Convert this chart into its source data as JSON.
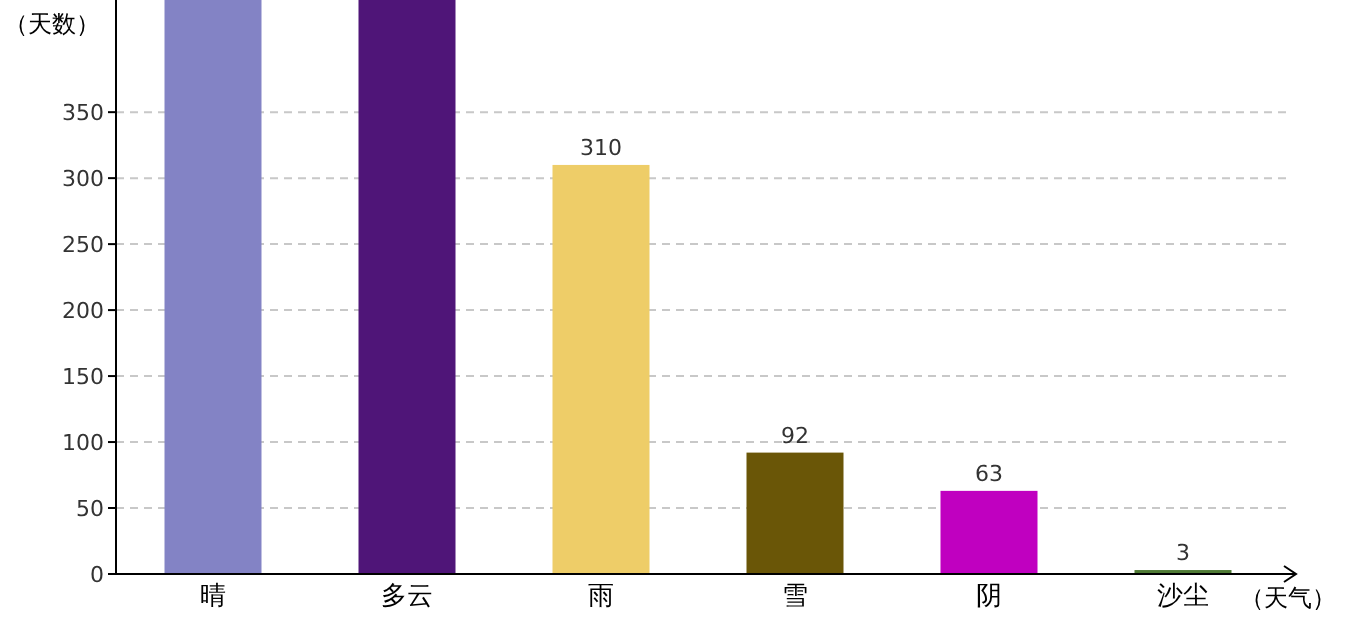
{
  "chart_data": {
    "type": "bar",
    "xlabel": "（天气）",
    "ylabel": "（天数）",
    "categories": [
      "晴",
      "多云",
      "雨",
      "雪",
      "阴",
      "沙尘"
    ],
    "values": [
      435,
      435,
      310,
      92,
      63,
      3
    ],
    "value_labels": [
      null,
      null,
      "310",
      "92",
      "63",
      "3"
    ],
    "colors": [
      "#8383c5",
      "#4f1578",
      "#eecd68",
      "#6a5607",
      "#c000c0",
      "#4f7a35"
    ],
    "ylim": [
      0,
      435
    ],
    "yticks": [
      0,
      50,
      100,
      150,
      200,
      250,
      300,
      350
    ],
    "grid": "y"
  }
}
